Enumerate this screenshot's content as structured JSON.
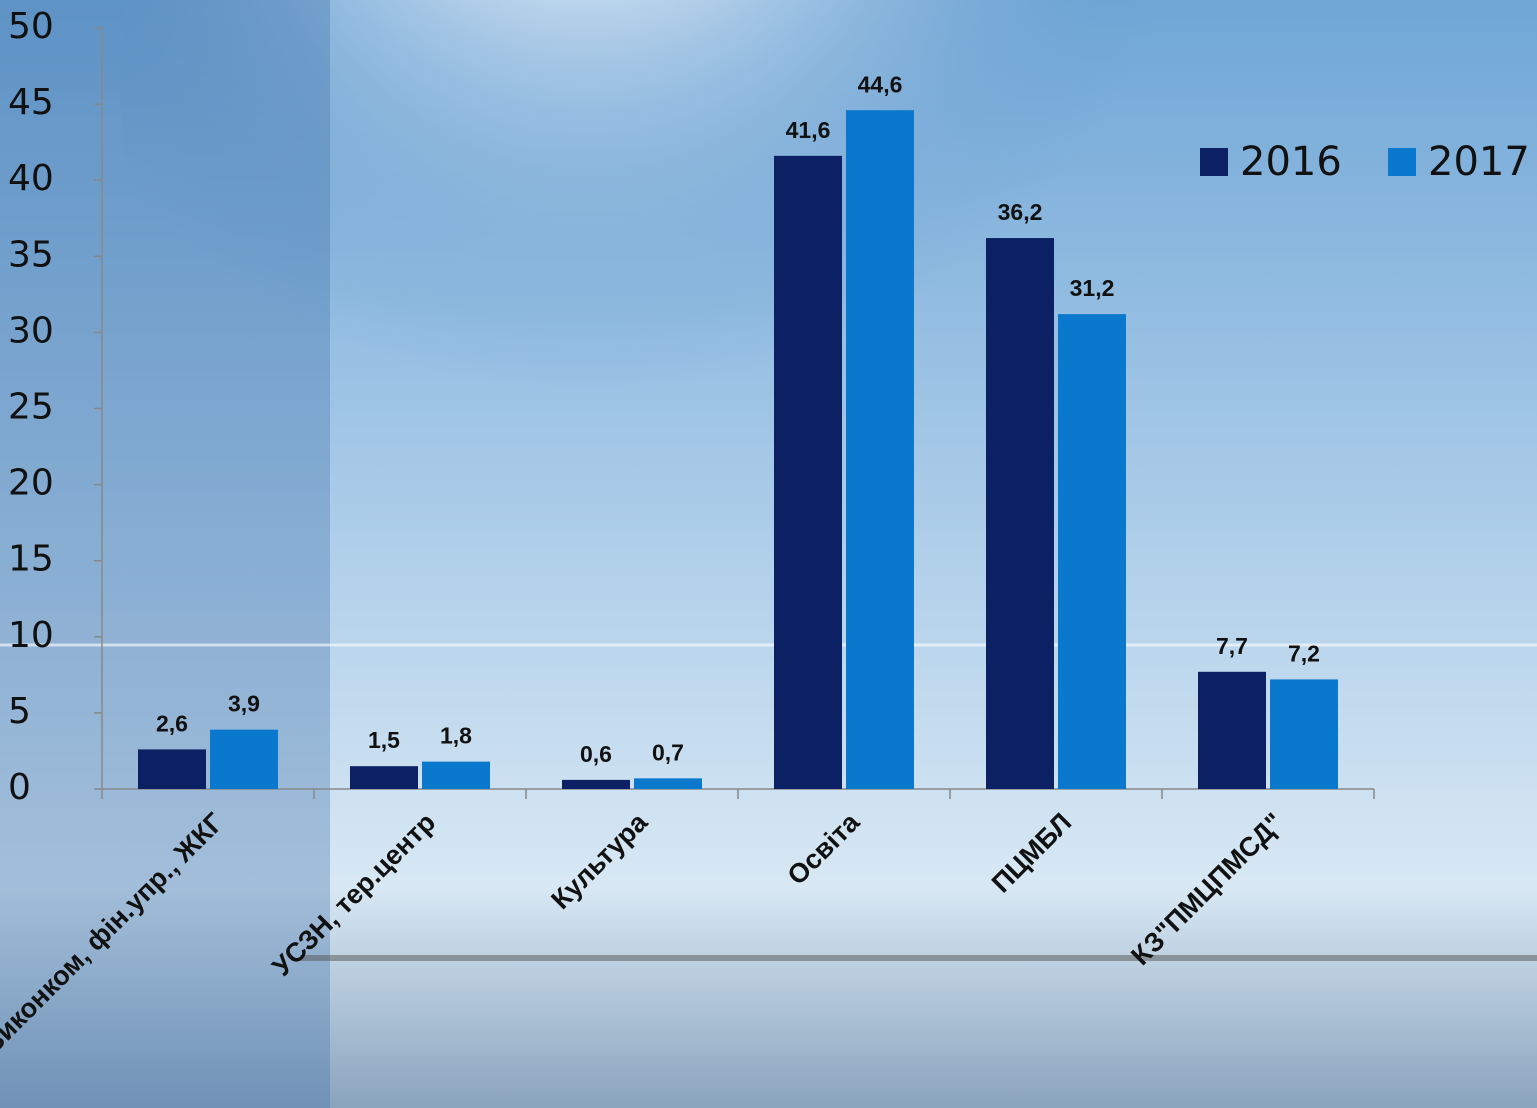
{
  "chart_data": {
    "type": "bar",
    "categories": [
      "Виконком, фін.упр., ЖКГ",
      "УСЗН, тер.центр",
      "Культура",
      "Освіта",
      "ПЦМБЛ",
      "КЗ\"ПМЦПМСД\""
    ],
    "series": [
      {
        "name": "2016",
        "color": "#0c2163",
        "values": [
          2.6,
          1.5,
          0.6,
          41.6,
          36.2,
          7.7
        ],
        "value_labels": [
          "2,6",
          "1,5",
          "0,6",
          "41,6",
          "36,2",
          "7,7"
        ]
      },
      {
        "name": "2017",
        "color": "#0a78cc",
        "values": [
          3.9,
          1.8,
          0.7,
          44.6,
          31.2,
          7.2
        ],
        "value_labels": [
          "3,9",
          "1,8",
          "0,7",
          "44,6",
          "31,2",
          "7,2"
        ]
      }
    ],
    "ylim": [
      0,
      50
    ],
    "yticks": [
      0,
      5,
      10,
      15,
      20,
      25,
      30,
      35,
      40,
      45,
      50
    ],
    "legend": "top-right"
  }
}
